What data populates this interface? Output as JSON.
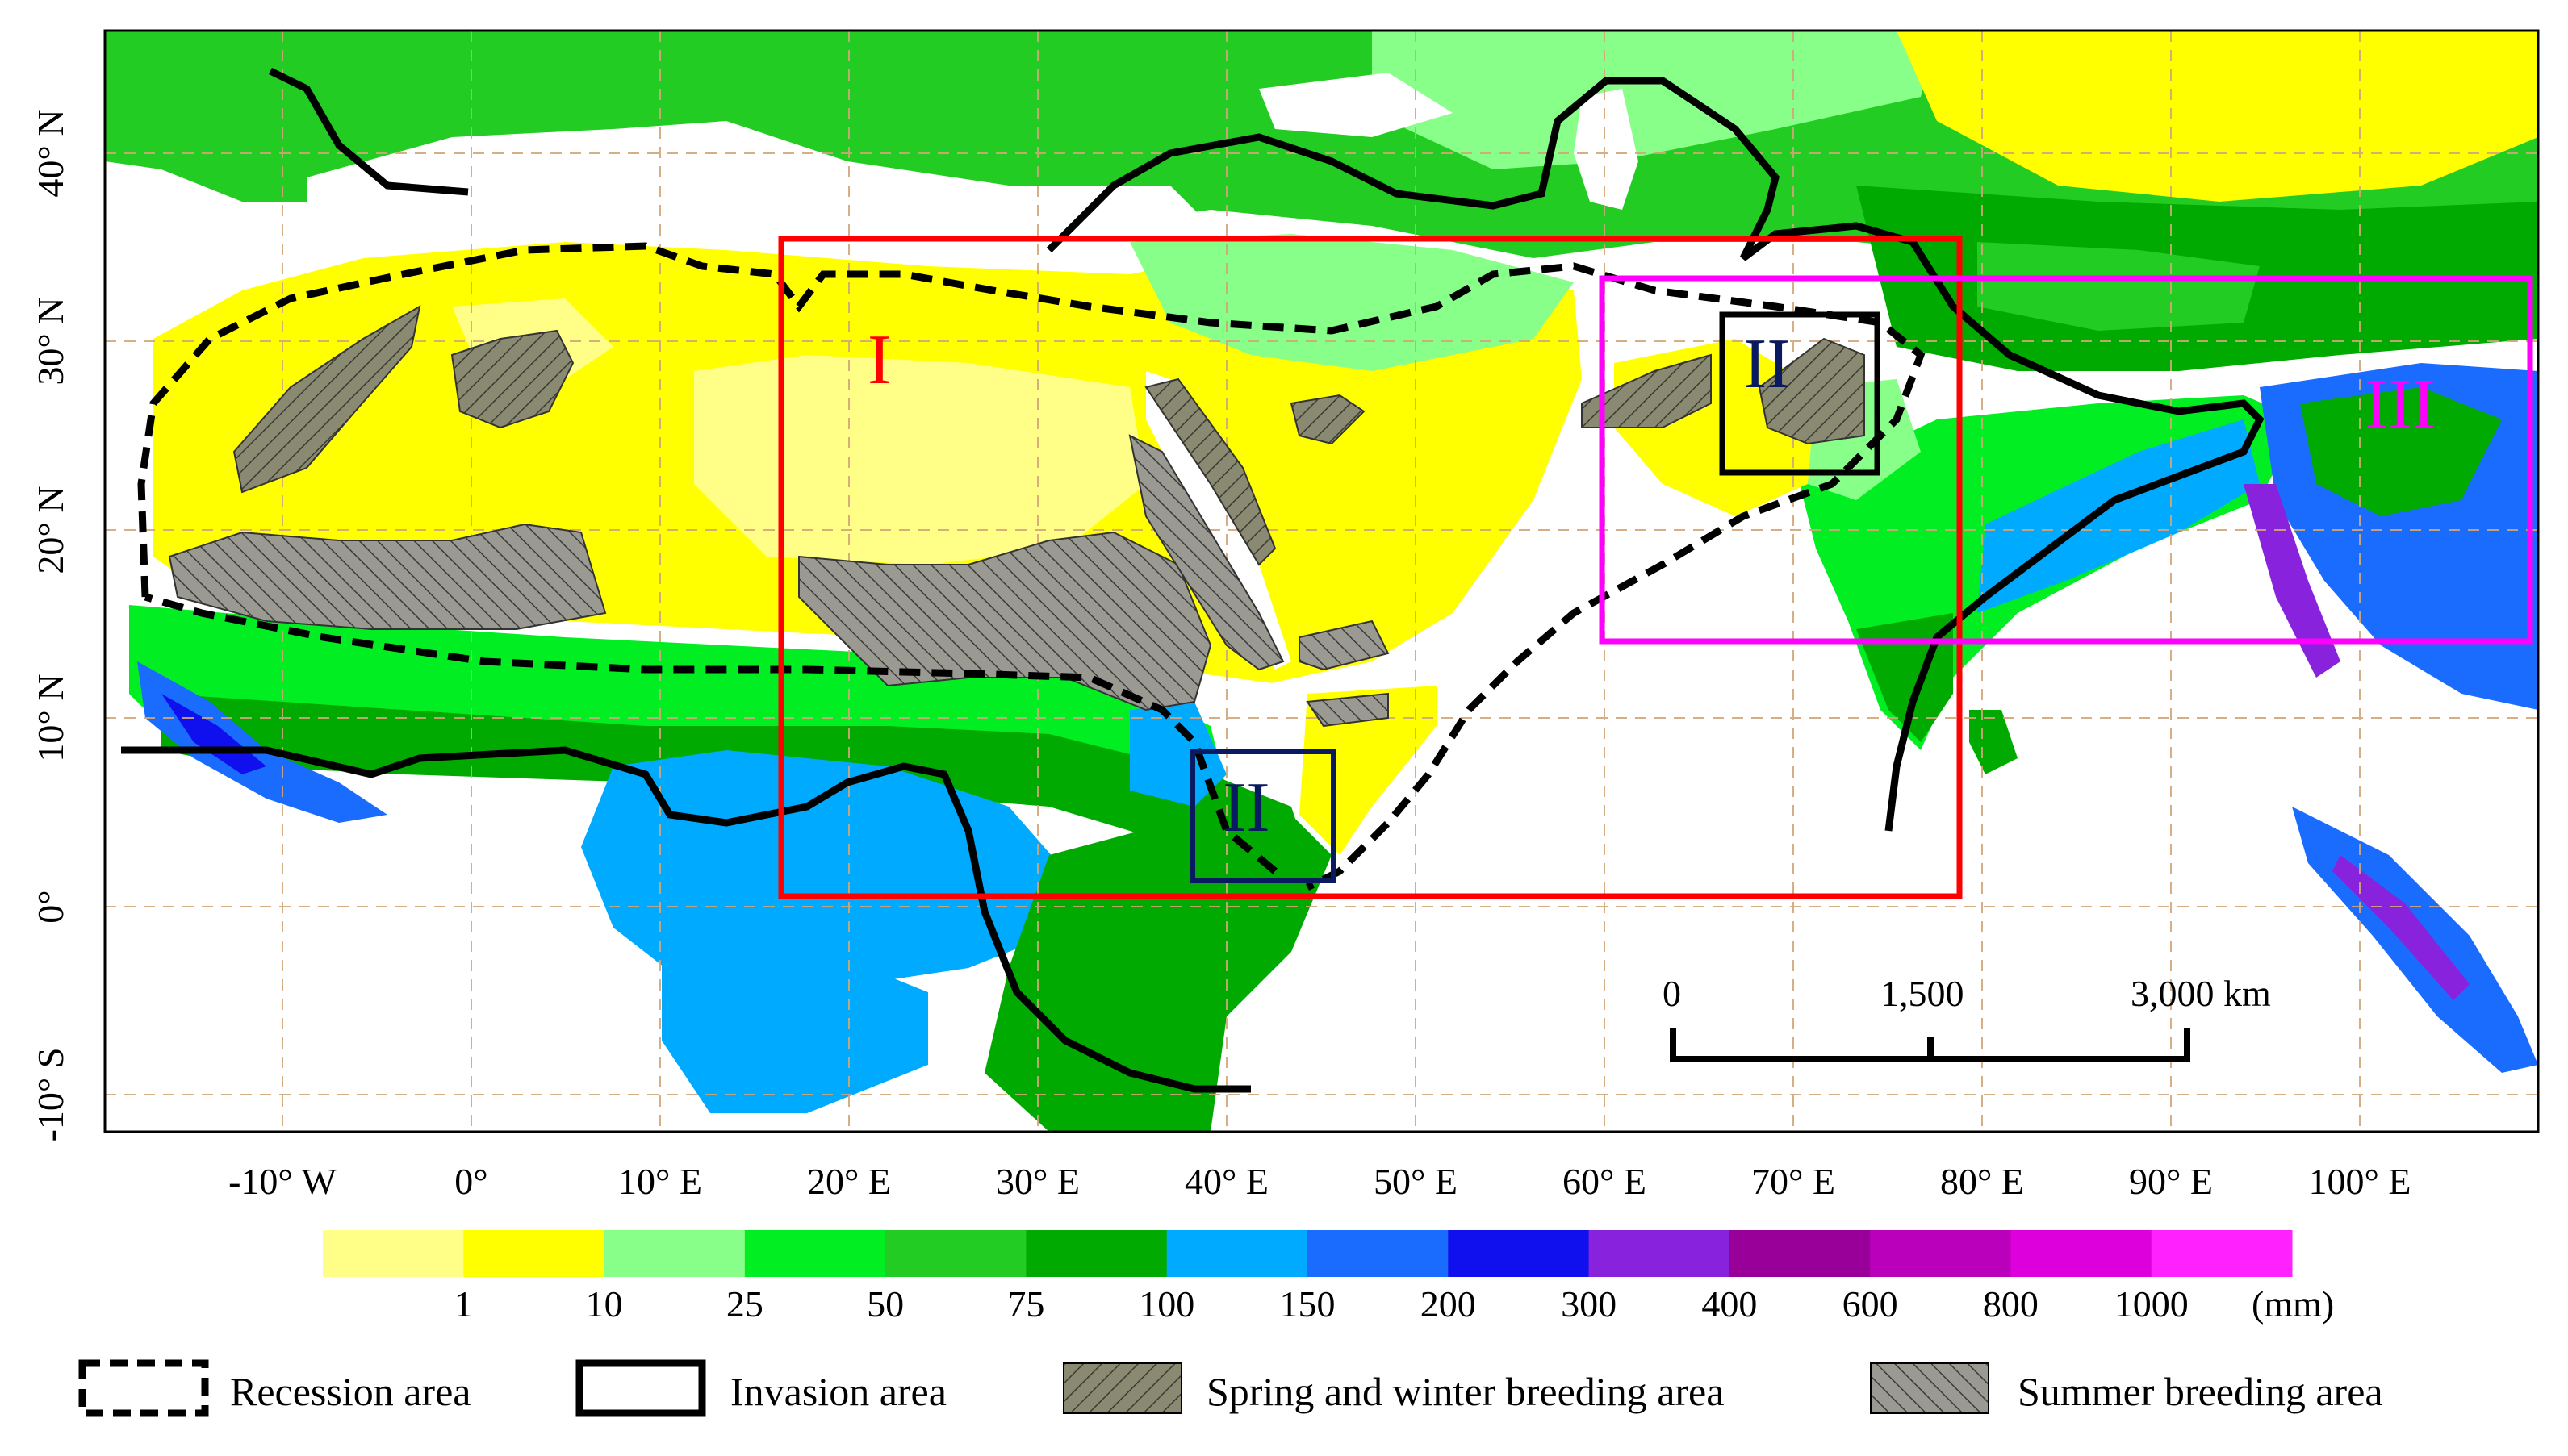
{
  "map": {
    "regions": [
      {
        "id": "I",
        "label": "I",
        "color": "#ff0000"
      },
      {
        "id": "II",
        "label": "II",
        "color": "#0a1a60"
      },
      {
        "id": "III",
        "label": "III",
        "color": "#ff00ff"
      }
    ],
    "lat_labels": [
      "40° N",
      "30° N",
      "20° N",
      "10° N",
      "0°",
      "-10° S"
    ],
    "lon_labels": [
      "-10° W",
      "0°",
      "10° E",
      "20° E",
      "30° E",
      "40° E",
      "50° E",
      "60° E",
      "70° E",
      "80° E",
      "90° E",
      "100° E"
    ],
    "scale_bar": {
      "labels": [
        "0",
        "1,500",
        "3,000 km"
      ]
    }
  },
  "colorbar": {
    "colors": [
      "#ffff88",
      "#ffff00",
      "#88ff88",
      "#00ee22",
      "#22cc22",
      "#00aa00",
      "#00aaff",
      "#1a6cff",
      "#1010ee",
      "#8822dd",
      "#990099",
      "#bb00bb",
      "#dd00dd",
      "#ff22ff"
    ],
    "labels": [
      "1",
      "10",
      "25",
      "50",
      "75",
      "100",
      "150",
      "200",
      "300",
      "400",
      "600",
      "800",
      "1000"
    ],
    "unit": "(mm)"
  },
  "legend": {
    "items": [
      {
        "label": "Recession area"
      },
      {
        "label": "Invasion area"
      },
      {
        "label": "Spring and winter breeding area"
      },
      {
        "label": "Summer breeding area"
      }
    ]
  }
}
